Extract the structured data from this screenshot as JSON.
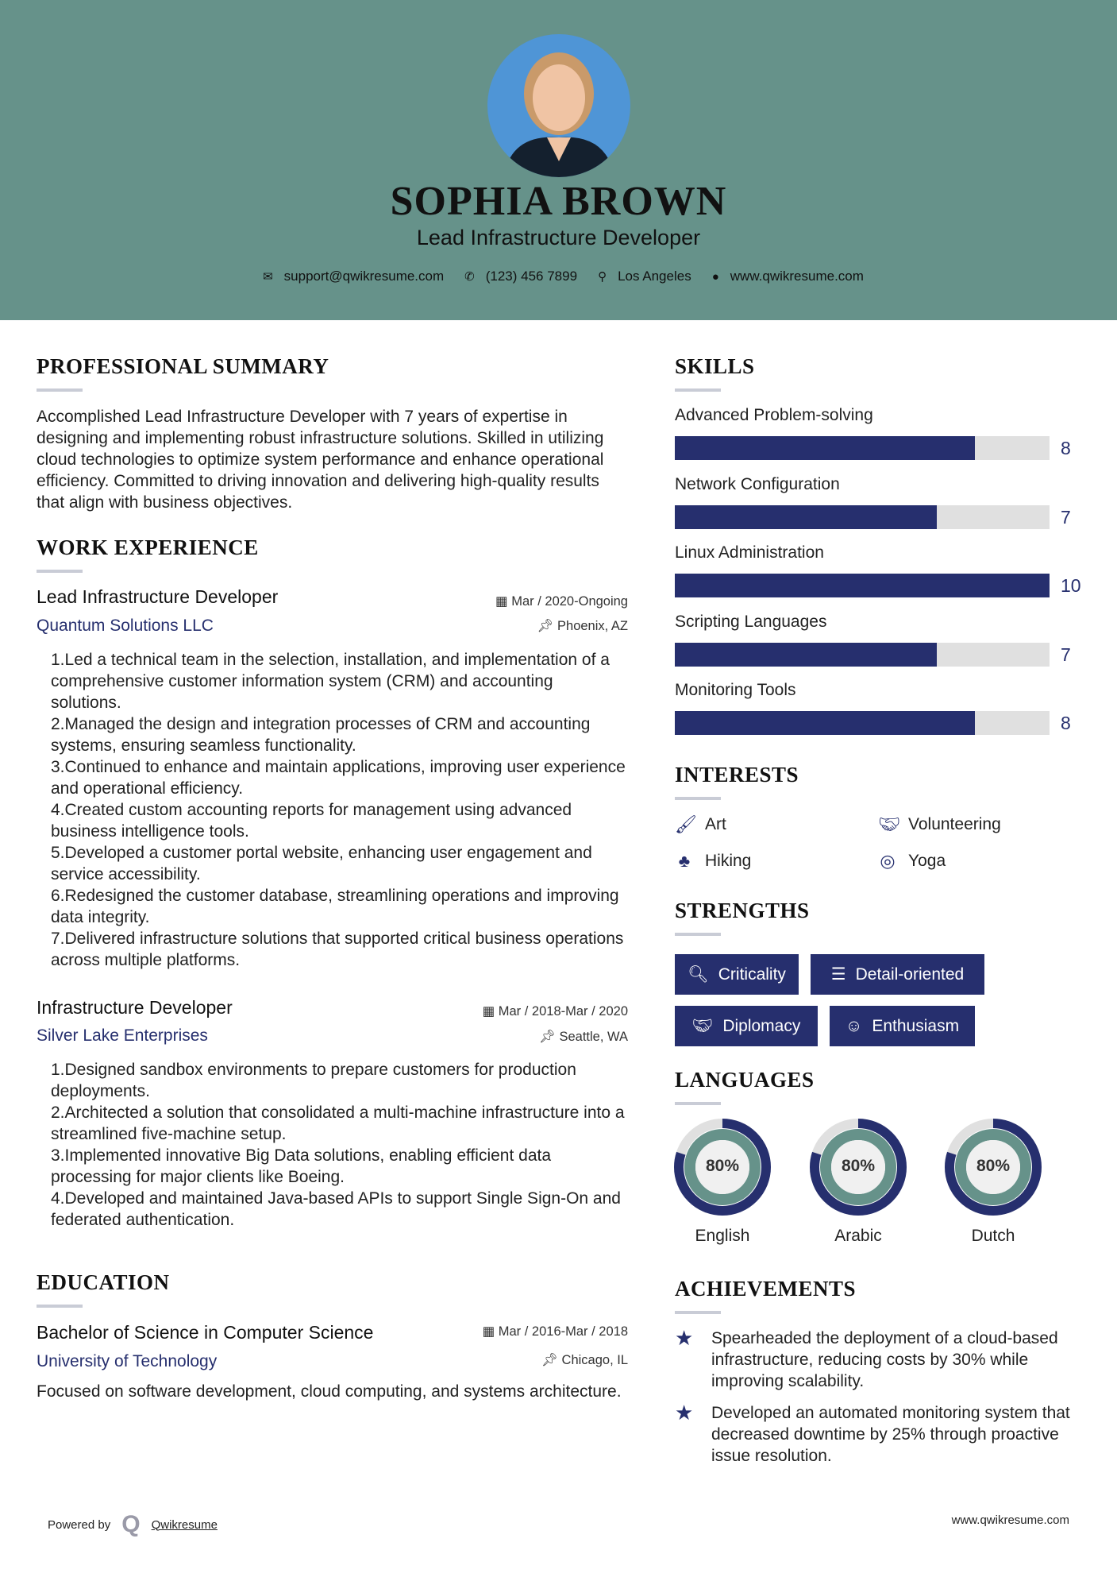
{
  "header": {
    "name": "SOPHIA BROWN",
    "title": "Lead Infrastructure Developer",
    "contact": {
      "email": "support@qwikresume.com",
      "phone": "(123) 456 7899",
      "location": "Los Angeles",
      "website": "www.qwikresume.com"
    }
  },
  "summary": {
    "heading": "PROFESSIONAL SUMMARY",
    "text": "Accomplished Lead Infrastructure Developer with 7 years of expertise in designing and implementing robust infrastructure solutions. Skilled in utilizing cloud technologies to optimize system performance and enhance operational efficiency. Committed to driving innovation and delivering high-quality results that align with business objectives."
  },
  "work": {
    "heading": "WORK EXPERIENCE",
    "jobs": [
      {
        "title": "Lead Infrastructure Developer",
        "company": "Quantum Solutions LLC",
        "dates": "Mar / 2020-Ongoing",
        "location": "Phoenix, AZ",
        "items": [
          "Led a technical team in the selection, installation, and implementation of a comprehensive customer information system (CRM) and accounting solutions.",
          "Managed the design and integration processes of CRM and accounting systems, ensuring seamless functionality.",
          "Continued to enhance and maintain applications, improving user experience and operational efficiency.",
          "Created custom accounting reports for management using advanced business intelligence tools.",
          "Developed a customer portal website, enhancing user engagement and service accessibility.",
          "Redesigned the customer database, streamlining operations and improving data integrity.",
          "Delivered infrastructure solutions that supported critical business operations across multiple platforms."
        ]
      },
      {
        "title": "Infrastructure Developer",
        "company": "Silver Lake Enterprises",
        "dates": "Mar / 2018-Mar / 2020",
        "location": "Seattle, WA",
        "items": [
          "Designed sandbox environments to prepare customers for production deployments.",
          "Architected a solution that consolidated a multi-machine infrastructure into a streamlined five-machine setup.",
          "Implemented innovative Big Data solutions, enabling efficient data processing for major clients like Boeing.",
          "Developed and maintained Java-based APIs to support Single Sign-On and federated authentication."
        ]
      }
    ]
  },
  "education": {
    "heading": "EDUCATION",
    "degree": "Bachelor of Science in Computer Science",
    "school": "University of Technology",
    "dates": "Mar / 2016-Mar / 2018",
    "location": "Chicago, IL",
    "text": "Focused on software development, cloud computing, and systems architecture."
  },
  "skills": {
    "heading": "SKILLS",
    "max": 10,
    "items": [
      {
        "name": "Advanced Problem-solving",
        "value": 8
      },
      {
        "name": "Network Configuration",
        "value": 7
      },
      {
        "name": "Linux Administration",
        "value": 10
      },
      {
        "name": "Scripting Languages",
        "value": 7
      },
      {
        "name": "Monitoring Tools",
        "value": 8
      }
    ]
  },
  "interests": {
    "heading": "INTERESTS",
    "items": [
      {
        "label": "Art",
        "icon": "paintbrush-icon"
      },
      {
        "label": "Volunteering",
        "icon": "handshake-icon"
      },
      {
        "label": "Hiking",
        "icon": "tree-icon"
      },
      {
        "label": "Yoga",
        "icon": "lifebuoy-icon"
      }
    ]
  },
  "strengths": {
    "heading": "STRENGTHS",
    "items": [
      {
        "label": "Criticality",
        "icon": "search-icon"
      },
      {
        "label": "Detail-oriented",
        "icon": "list-icon"
      },
      {
        "label": "Diplomacy",
        "icon": "handshake-icon"
      },
      {
        "label": "Enthusiasm",
        "icon": "smile-icon"
      }
    ]
  },
  "languages": {
    "heading": "LANGUAGES",
    "items": [
      {
        "name": "English",
        "percent": 80,
        "label": "80%"
      },
      {
        "name": "Arabic",
        "percent": 80,
        "label": "80%"
      },
      {
        "name": "Dutch",
        "percent": 80,
        "label": "80%"
      }
    ]
  },
  "achievements": {
    "heading": "ACHIEVEMENTS",
    "items": [
      "Spearheaded the deployment of a cloud-based infrastructure, reducing costs by 30% while improving scalability.",
      "Developed an automated monitoring system that decreased downtime by 25% through proactive issue resolution."
    ]
  },
  "footer": {
    "powered_by": "Powered by",
    "brand": "Qwikresume",
    "website": "www.qwikresume.com"
  },
  "colors": {
    "header": "#66928a",
    "accent": "#262f6e",
    "bar_bg": "#e0e0e0"
  }
}
